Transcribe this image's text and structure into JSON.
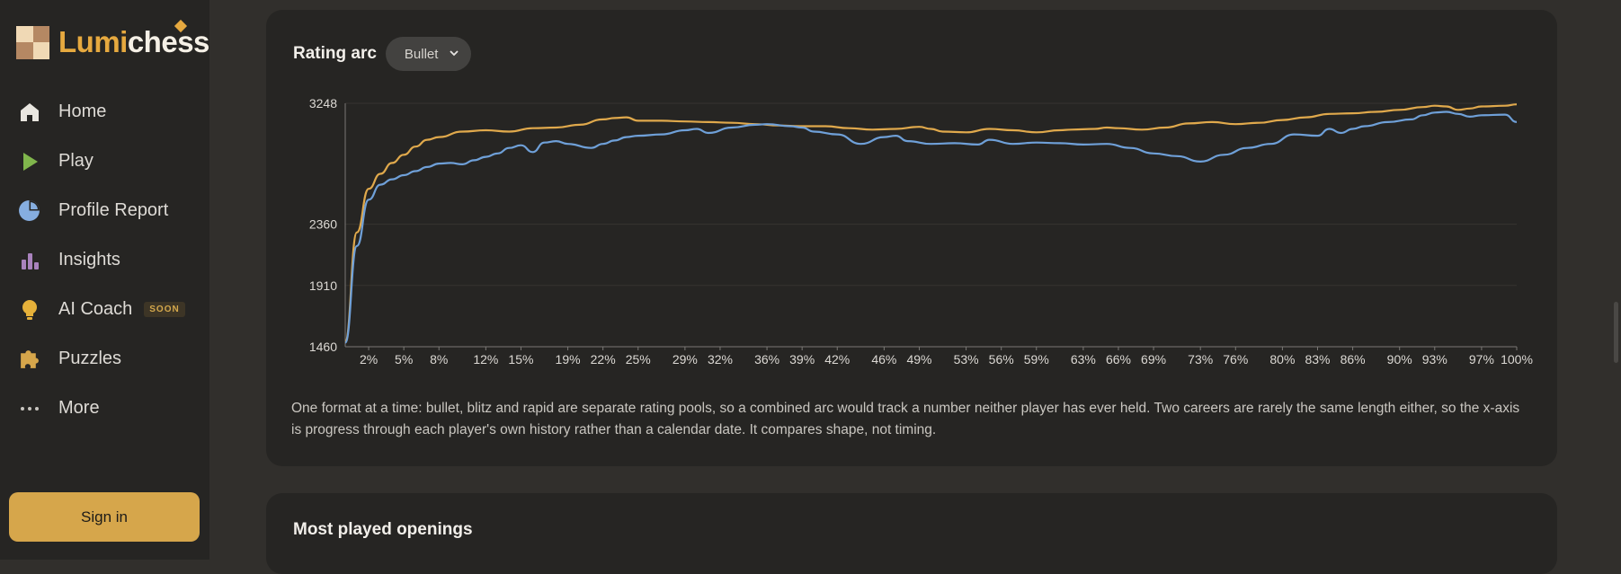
{
  "brand": {
    "name_part1": "Lumi",
    "name_part2": "chess"
  },
  "nav": [
    {
      "id": "home",
      "label": "Home",
      "icon": "home-icon",
      "color": "#e9e6e0"
    },
    {
      "id": "play",
      "label": "Play",
      "icon": "play-icon",
      "color": "#80b64c"
    },
    {
      "id": "profile-report",
      "label": "Profile Report",
      "icon": "pie-chart-icon",
      "color": "#86aee0"
    },
    {
      "id": "insights",
      "label": "Insights",
      "icon": "bar-chart-icon",
      "color": "#a982bd"
    },
    {
      "id": "ai-coach",
      "label": "AI Coach",
      "icon": "lightbulb-icon",
      "color": "#e6b13a",
      "badge": "SOON"
    },
    {
      "id": "puzzles",
      "label": "Puzzles",
      "icon": "puzzle-icon",
      "color": "#d6a64b"
    },
    {
      "id": "more",
      "label": "More",
      "icon": "more-dots-icon",
      "color": "#c8c5c0"
    }
  ],
  "sign_in_label": "Sign in",
  "rating_card": {
    "title": "Rating arc",
    "format_selected": "Bullet",
    "note": "One format at a time: bullet, blitz and rapid are separate rating pools, so a combined arc would track a number neither player has ever held. Two careers are rarely the same length either, so the x-axis is progress through each player's own history rather than a calendar date. It compares shape, not timing."
  },
  "openings_card": {
    "title": "Most played openings"
  },
  "chart_data": {
    "type": "line",
    "title": "",
    "xlabel": "",
    "ylabel": "",
    "xlim": [
      0,
      100
    ],
    "ylim": [
      1460,
      3248
    ],
    "yticks": [
      1460,
      1910,
      2360,
      3248
    ],
    "xtick_labels": [
      "2%",
      "5%",
      "8%",
      "12%",
      "15%",
      "19%",
      "22%",
      "25%",
      "29%",
      "32%",
      "36%",
      "39%",
      "42%",
      "46%",
      "49%",
      "53%",
      "56%",
      "59%",
      "63%",
      "66%",
      "69%",
      "73%",
      "76%",
      "80%",
      "83%",
      "86%",
      "90%",
      "93%",
      "97%",
      "100%"
    ],
    "grid": true,
    "series": [
      {
        "color": "#e0a94c",
        "x": [
          0,
          1,
          2,
          3,
          4,
          5,
          6,
          7,
          8,
          10,
          12,
          14,
          16,
          18,
          20,
          22,
          23,
          24,
          25,
          27,
          29,
          31,
          33,
          35,
          37,
          39,
          41,
          43,
          45,
          47,
          49,
          50,
          51,
          53,
          55,
          57,
          59,
          61,
          62,
          64,
          65,
          66,
          68,
          70,
          72,
          74,
          76,
          78,
          80,
          82,
          84,
          86,
          88,
          90,
          92,
          93,
          94,
          95,
          96,
          97,
          99,
          100
        ],
        "y": [
          1500,
          2300,
          2620,
          2730,
          2810,
          2870,
          2930,
          2980,
          3000,
          3040,
          3050,
          3040,
          3065,
          3070,
          3090,
          3130,
          3140,
          3145,
          3120,
          3120,
          3115,
          3110,
          3105,
          3095,
          3085,
          3080,
          3080,
          3065,
          3055,
          3060,
          3075,
          3060,
          3040,
          3035,
          3060,
          3050,
          3035,
          3050,
          3055,
          3060,
          3070,
          3065,
          3055,
          3070,
          3100,
          3110,
          3095,
          3105,
          3125,
          3145,
          3170,
          3175,
          3185,
          3200,
          3220,
          3230,
          3225,
          3200,
          3210,
          3225,
          3230,
          3240
        ]
      },
      {
        "color": "#6fa0d8",
        "x": [
          0,
          1,
          2,
          3,
          4,
          5,
          6,
          7,
          8,
          9,
          10,
          11,
          12,
          13,
          14,
          15,
          16,
          17,
          18,
          19,
          21,
          22,
          23,
          24,
          25,
          27,
          29,
          30,
          31,
          33,
          35,
          36,
          38,
          39,
          40,
          42,
          44,
          46,
          47,
          48,
          50,
          52,
          54,
          55,
          57,
          59,
          61,
          63,
          65,
          67,
          69,
          71,
          73,
          75,
          77,
          79,
          81,
          83,
          84,
          85,
          86,
          87,
          89,
          91,
          92,
          93,
          94,
          95,
          96,
          97,
          99,
          100
        ],
        "y": [
          1490,
          2200,
          2540,
          2650,
          2690,
          2720,
          2750,
          2780,
          2805,
          2810,
          2800,
          2830,
          2855,
          2880,
          2920,
          2940,
          2890,
          2960,
          2970,
          2950,
          2920,
          2950,
          2975,
          3000,
          3010,
          3020,
          3050,
          3060,
          3030,
          3070,
          3090,
          3095,
          3080,
          3070,
          3040,
          3020,
          2950,
          3000,
          3010,
          2970,
          2950,
          2955,
          2945,
          2980,
          2950,
          2960,
          2955,
          2945,
          2950,
          2920,
          2880,
          2860,
          2820,
          2870,
          2920,
          2950,
          3020,
          3010,
          3060,
          3030,
          3060,
          3080,
          3110,
          3130,
          3160,
          3180,
          3185,
          3170,
          3150,
          3160,
          3165,
          3110
        ]
      }
    ]
  }
}
